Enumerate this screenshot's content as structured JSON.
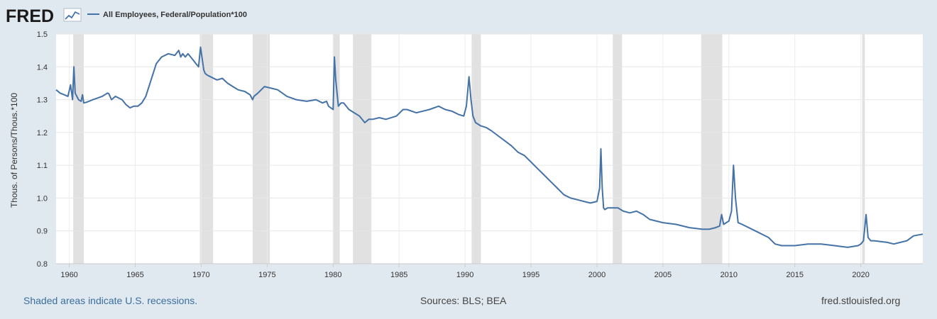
{
  "header": {
    "logo_text": "FRED",
    "legend_label": "All Employees, Federal/Population*100",
    "series_color": "#4572a7"
  },
  "footer": {
    "left": "Shaded areas indicate U.S. recessions.",
    "center": "Sources: BLS; BEA",
    "right": "fred.stlouisfed.org"
  },
  "chart_data": {
    "type": "line",
    "ylabel": "Thous. of Persons/Thous.*100",
    "xlim": [
      1959.0,
      2024.7
    ],
    "ylim": [
      0.8,
      1.5
    ],
    "y_ticks": [
      0.8,
      0.9,
      1.0,
      1.1,
      1.2,
      1.3,
      1.4,
      1.5
    ],
    "x_ticks": [
      1960,
      1965,
      1970,
      1975,
      1980,
      1985,
      1990,
      1995,
      2000,
      2005,
      2010,
      2015,
      2020
    ],
    "grid": true,
    "recessions": [
      [
        1960.3,
        1961.1
      ],
      [
        1969.9,
        1970.9
      ],
      [
        1973.9,
        1975.2
      ],
      [
        1980.0,
        1980.5
      ],
      [
        1981.5,
        1982.9
      ],
      [
        1990.5,
        1991.2
      ],
      [
        2001.2,
        2001.9
      ],
      [
        2007.9,
        2009.5
      ],
      [
        2020.1,
        2020.3
      ]
    ],
    "series": [
      {
        "name": "All Employees, Federal/Population*100",
        "x": [
          1959.0,
          1959.3,
          1959.6,
          1959.9,
          1960.1,
          1960.25,
          1960.35,
          1960.45,
          1960.7,
          1960.9,
          1961.0,
          1961.1,
          1961.3,
          1961.8,
          1962.5,
          1962.9,
          1963.0,
          1963.2,
          1963.5,
          1964.0,
          1964.3,
          1964.6,
          1964.9,
          1965.2,
          1965.5,
          1965.8,
          1966.2,
          1966.6,
          1967.0,
          1967.5,
          1968.0,
          1968.3,
          1968.45,
          1968.6,
          1968.8,
          1969.0,
          1969.2,
          1969.4,
          1969.6,
          1969.8,
          1969.95,
          1970.2,
          1970.3,
          1970.45,
          1970.7,
          1971.2,
          1971.6,
          1972.0,
          1972.4,
          1972.8,
          1973.3,
          1973.7,
          1973.9,
          1974.0,
          1974.3,
          1974.8,
          1975.3,
          1975.8,
          1976.5,
          1977.2,
          1978.0,
          1978.7,
          1979.2,
          1979.5,
          1979.65,
          1980.0,
          1980.1,
          1980.2,
          1980.3,
          1980.4,
          1980.6,
          1980.8,
          1981.2,
          1981.6,
          1982.0,
          1982.4,
          1982.7,
          1983.0,
          1983.5,
          1984.0,
          1984.8,
          1985.3,
          1985.6,
          1986.3,
          1986.8,
          1987.3,
          1988.0,
          1988.5,
          1989.0,
          1989.5,
          1989.9,
          1990.1,
          1990.3,
          1990.45,
          1990.6,
          1990.8,
          1991.2,
          1991.6,
          1992.0,
          1992.5,
          1993.0,
          1993.5,
          1994.0,
          1994.5,
          1995.0,
          1995.5,
          1996.0,
          1996.5,
          1997.0,
          1997.5,
          1998.0,
          1998.5,
          1999.0,
          1999.5,
          2000.0,
          2000.2,
          2000.3,
          2000.4,
          2000.5,
          2000.6,
          2000.8,
          2001.2,
          2001.6,
          2002.0,
          2002.5,
          2003.0,
          2003.5,
          2004.0,
          2005.0,
          2006.0,
          2007.0,
          2008.0,
          2008.5,
          2009.0,
          2009.3,
          2009.45,
          2009.6,
          2009.8,
          2010.0,
          2010.2,
          2010.35,
          2010.5,
          2010.7,
          2011.0,
          2012.0,
          2013.0,
          2013.5,
          2014.0,
          2015.0,
          2016.0,
          2017.0,
          2018.0,
          2019.0,
          2019.8,
          2020.0,
          2020.2,
          2020.4,
          2020.55,
          2020.75,
          2021.0,
          2022.0,
          2022.5,
          2023.0,
          2023.5,
          2024.0,
          2024.7
        ],
        "values": [
          1.33,
          1.32,
          1.315,
          1.31,
          1.345,
          1.3,
          1.4,
          1.32,
          1.3,
          1.295,
          1.315,
          1.29,
          1.292,
          1.3,
          1.31,
          1.32,
          1.318,
          1.3,
          1.31,
          1.3,
          1.285,
          1.275,
          1.28,
          1.28,
          1.29,
          1.31,
          1.36,
          1.41,
          1.43,
          1.44,
          1.435,
          1.45,
          1.43,
          1.44,
          1.43,
          1.44,
          1.43,
          1.42,
          1.41,
          1.4,
          1.46,
          1.39,
          1.38,
          1.375,
          1.37,
          1.36,
          1.365,
          1.35,
          1.34,
          1.33,
          1.325,
          1.315,
          1.3,
          1.31,
          1.32,
          1.34,
          1.335,
          1.33,
          1.31,
          1.3,
          1.295,
          1.3,
          1.29,
          1.295,
          1.28,
          1.27,
          1.43,
          1.36,
          1.32,
          1.28,
          1.29,
          1.29,
          1.27,
          1.26,
          1.25,
          1.23,
          1.24,
          1.24,
          1.245,
          1.24,
          1.25,
          1.27,
          1.27,
          1.26,
          1.265,
          1.27,
          1.28,
          1.27,
          1.265,
          1.255,
          1.25,
          1.28,
          1.37,
          1.3,
          1.25,
          1.23,
          1.22,
          1.215,
          1.205,
          1.19,
          1.175,
          1.16,
          1.14,
          1.13,
          1.11,
          1.09,
          1.07,
          1.05,
          1.03,
          1.01,
          1.0,
          0.995,
          0.99,
          0.985,
          0.99,
          1.03,
          1.15,
          1.03,
          0.97,
          0.965,
          0.97,
          0.97,
          0.97,
          0.96,
          0.955,
          0.96,
          0.95,
          0.935,
          0.925,
          0.92,
          0.91,
          0.905,
          0.905,
          0.91,
          0.915,
          0.95,
          0.92,
          0.925,
          0.93,
          0.96,
          1.1,
          1.0,
          0.925,
          0.92,
          0.9,
          0.88,
          0.86,
          0.855,
          0.855,
          0.86,
          0.86,
          0.855,
          0.85,
          0.855,
          0.86,
          0.87,
          0.95,
          0.88,
          0.87,
          0.87,
          0.865,
          0.86,
          0.865,
          0.87,
          0.885,
          0.89
        ]
      }
    ]
  }
}
